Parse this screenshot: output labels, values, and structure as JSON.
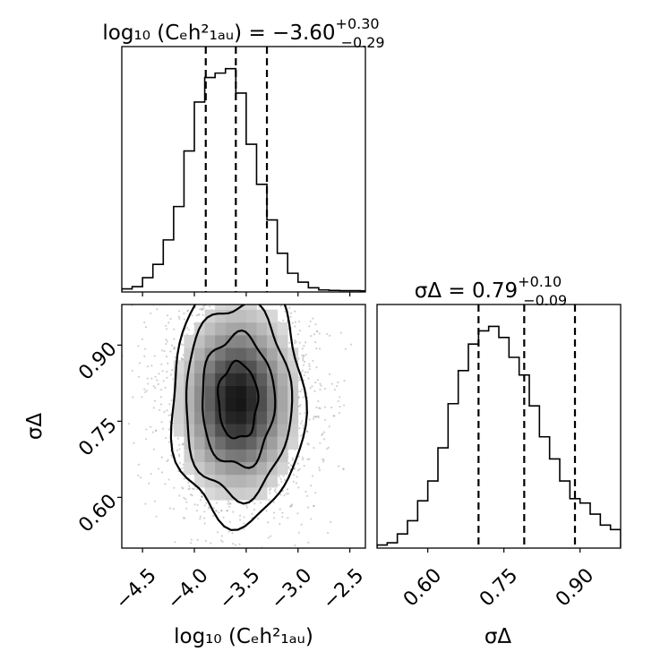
{
  "chart_data": {
    "type": "corner",
    "parameters": [
      {
        "id": "log10_Ce",
        "label": "log₁₀ (Cₑh²₁ₐᵤ)",
        "title": "log₁₀ (Cₑh²₁ₐᵤ) = −3.60",
        "title_upper": "+0.30",
        "title_lower": "−0.29",
        "median": -3.6,
        "q16": -3.89,
        "q84": -3.3,
        "range": [
          -4.7,
          -2.35
        ],
        "ticks": [
          -4.5,
          -4.0,
          -3.5,
          -3.0,
          -2.5
        ],
        "tick_labels": [
          "−4.5",
          "−4.0",
          "−3.5",
          "−3.0",
          "−2.5"
        ],
        "histogram": {
          "bin_start": -4.7,
          "bin_width": 0.1,
          "counts": [
            1,
            2,
            6,
            12,
            23,
            38,
            63,
            85,
            96,
            98,
            100,
            89,
            66,
            48,
            32,
            17,
            8,
            4,
            1.5,
            0.5,
            0.3,
            0.2,
            0.2,
            0.1
          ]
        }
      },
      {
        "id": "sigma_delta",
        "label": "σΔ",
        "title": "σΔ = 0.79",
        "title_upper": "+0.10",
        "title_lower": "−0.09",
        "median": 0.79,
        "q16": 0.7,
        "q84": 0.89,
        "range": [
          0.5,
          0.98
        ],
        "ticks": [
          0.6,
          0.75,
          0.9
        ],
        "tick_labels": [
          "0.60",
          "0.75",
          "0.90"
        ],
        "histogram": {
          "bin_start": 0.5,
          "bin_width": 0.02,
          "counts": [
            1,
            2,
            6,
            12,
            21,
            30,
            45,
            65,
            80,
            92,
            98,
            100,
            95,
            86,
            78,
            64,
            50,
            40,
            30,
            22,
            20,
            15,
            10,
            8
          ]
        }
      }
    ],
    "joint": {
      "x_param": "log10_Ce",
      "y_param": "sigma_delta",
      "center": [
        -3.58,
        0.79
      ],
      "contour_levels": [
        {
          "rx": 0.19,
          "ry": 0.075
        },
        {
          "rx": 0.35,
          "ry": 0.13
        },
        {
          "rx": 0.51,
          "ry": 0.19
        },
        {
          "rx": 0.64,
          "ry": 0.24
        }
      ]
    }
  }
}
